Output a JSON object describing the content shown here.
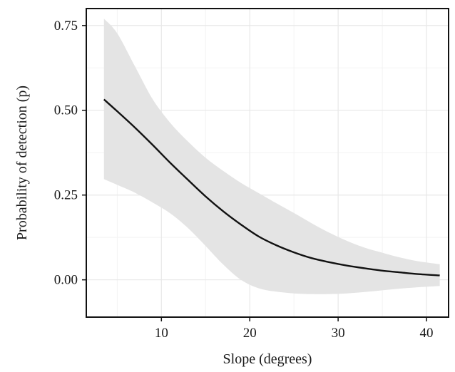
{
  "chart_data": {
    "type": "line",
    "title": "",
    "xlabel": "Slope (degrees)",
    "ylabel": "Probability of detection (p)",
    "xlim": [
      1.5,
      42.5
    ],
    "ylim": [
      -0.11,
      0.8
    ],
    "x_ticks": [
      10,
      20,
      30,
      40
    ],
    "x_tick_labels": [
      "10",
      "20",
      "30",
      "40"
    ],
    "y_ticks": [
      0.0,
      0.25,
      0.5,
      0.75
    ],
    "y_tick_labels": [
      "0.00",
      "0.25",
      "0.50",
      "0.75"
    ],
    "grid": true,
    "legend": "none",
    "colors": {
      "line": "#111111",
      "band": "#e4e4e4",
      "grid_major": "#e9e9e9",
      "grid_minor": "#f3f3f3",
      "frame": "#111111"
    },
    "series": [
      {
        "x": [
          3.5,
          5,
          7,
          9,
          11,
          13,
          15,
          17,
          19,
          21,
          23,
          25,
          27,
          29,
          31,
          33,
          35,
          37,
          39,
          41.5
        ],
        "y": [
          0.532,
          0.497,
          0.449,
          0.398,
          0.345,
          0.295,
          0.246,
          0.202,
          0.163,
          0.128,
          0.102,
          0.081,
          0.064,
          0.052,
          0.042,
          0.034,
          0.027,
          0.022,
          0.017,
          0.013
        ],
        "lower": [
          0.297,
          0.28,
          0.257,
          0.228,
          0.196,
          0.153,
          0.1,
          0.045,
          0.0,
          -0.025,
          -0.035,
          -0.04,
          -0.042,
          -0.042,
          -0.04,
          -0.036,
          -0.031,
          -0.026,
          -0.022,
          -0.018
        ],
        "upper": [
          0.77,
          0.727,
          0.63,
          0.533,
          0.463,
          0.408,
          0.36,
          0.321,
          0.286,
          0.256,
          0.226,
          0.197,
          0.167,
          0.139,
          0.115,
          0.095,
          0.08,
          0.066,
          0.055,
          0.046
        ]
      }
    ]
  }
}
